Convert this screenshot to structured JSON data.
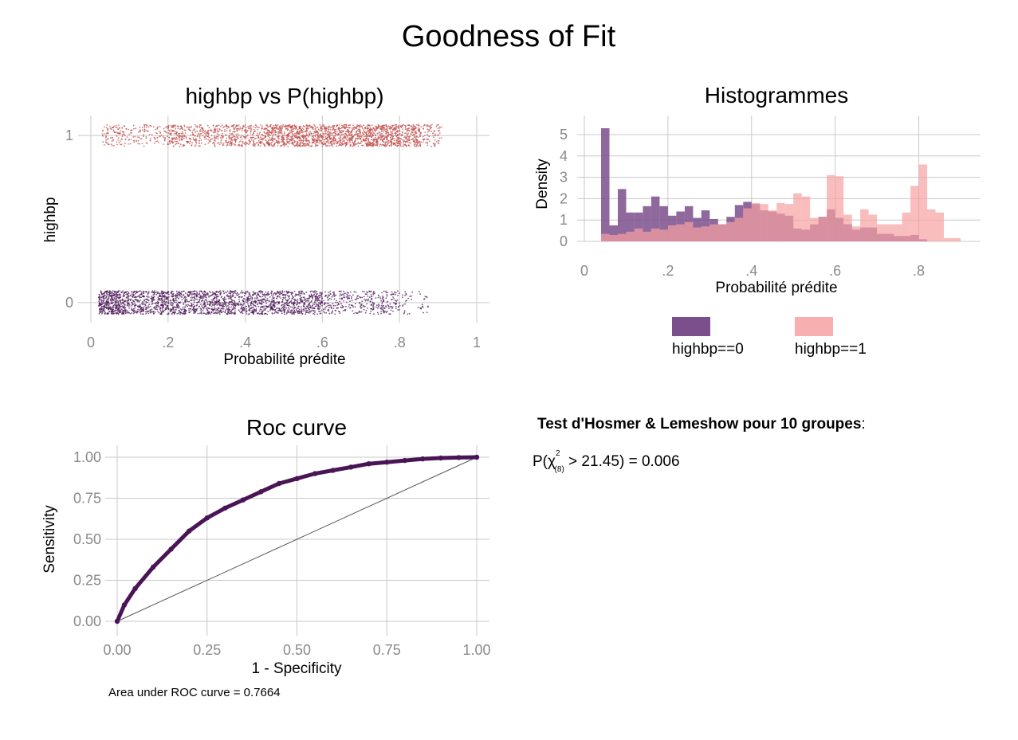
{
  "figure": {
    "title": "Goodness of Fit"
  },
  "colors": {
    "class0": "#4a1556",
    "class1": "#c0504d",
    "hist0": "#7b4f8c",
    "hist1": "#f7a1a1",
    "roc": "#4a1556"
  },
  "chart_data": [
    {
      "type": "scatter",
      "title": "highbp vs P(highbp)",
      "xlabel": "Probabilité prédite",
      "ylabel": "highbp",
      "xlim": [
        0,
        1
      ],
      "ylim": [
        -0.12,
        1.12
      ],
      "x_ticks": [
        0,
        0.2,
        0.4,
        0.6,
        0.8,
        1
      ],
      "x_tick_labels": [
        "0",
        ".2",
        ".4",
        ".6",
        ".8",
        "1"
      ],
      "y_ticks": [
        0,
        1
      ],
      "y_tick_labels": [
        "0",
        "1"
      ],
      "grid": true,
      "groups": [
        {
          "y": 0,
          "x_range": [
            0.02,
            0.88
          ],
          "color": "#4a1556",
          "description_density": "dense near 0.03-0.6, sparse above 0.8"
        },
        {
          "y": 1,
          "x_range": [
            0.03,
            0.91
          ],
          "color": "#c0504d",
          "description_density": "dense near 0.45-0.85"
        }
      ]
    },
    {
      "type": "bar",
      "title": "Histogrammes",
      "xlabel": "Probabilité prédite",
      "ylabel": "Density",
      "xlim": [
        0,
        0.92
      ],
      "ylim": [
        0,
        5.5
      ],
      "x_ticks": [
        0,
        0.2,
        0.4,
        0.6,
        0.8
      ],
      "x_tick_labels": [
        "0",
        ".2",
        ".4",
        ".6",
        ".8"
      ],
      "y_ticks": [
        0,
        1,
        2,
        3,
        4,
        5
      ],
      "y_tick_labels": [
        "0",
        "1",
        "2",
        "3",
        "4",
        "5"
      ],
      "grid": true,
      "bin_width": 0.02,
      "bin_start": 0.04,
      "legend": {
        "position": "bottom",
        "items": [
          "highbp==0",
          "highbp==1"
        ]
      },
      "series": [
        {
          "name": "highbp==0",
          "values": [
            5.3,
            0.75,
            2.45,
            1.35,
            1.35,
            1.65,
            2.1,
            1.65,
            1.2,
            1.4,
            1.65,
            1.1,
            1.45,
            1.05,
            0.8,
            1.15,
            1.7,
            1.85,
            1.75,
            1.45,
            1.4,
            1.3,
            1.2,
            0.6,
            0.55,
            0.8,
            1.15,
            1.5,
            1.1,
            0.8,
            0.55,
            0.65,
            0.65,
            0.35,
            0.35,
            0.25,
            0.25,
            0.3,
            0.1,
            0.0,
            0.0
          ]
        },
        {
          "name": "highbp==1",
          "values": [
            0.35,
            0.3,
            0.35,
            0.45,
            0.6,
            0.45,
            0.6,
            0.55,
            0.75,
            0.8,
            0.9,
            0.65,
            0.7,
            0.8,
            0.8,
            0.9,
            1.1,
            1.55,
            1.8,
            1.75,
            1.45,
            1.8,
            1.75,
            2.25,
            2.1,
            1.1,
            1.15,
            3.1,
            3.05,
            1.25,
            0.7,
            1.5,
            1.25,
            0.8,
            0.8,
            0.8,
            1.35,
            2.6,
            3.6,
            1.5,
            1.35,
            0.15,
            0.15
          ]
        }
      ]
    },
    {
      "type": "line",
      "title": "Roc curve",
      "xlabel": "1 - Specificity",
      "ylabel": "Sensitivity",
      "xlim": [
        0,
        1
      ],
      "ylim": [
        0,
        1
      ],
      "x_ticks": [
        0,
        0.25,
        0.5,
        0.75,
        1
      ],
      "x_tick_labels": [
        "0.00",
        "0.25",
        "0.50",
        "0.75",
        "1.00"
      ],
      "y_ticks": [
        0,
        0.25,
        0.5,
        0.75,
        1
      ],
      "y_tick_labels": [
        "0.00",
        "0.25",
        "0.50",
        "0.75",
        "1.00"
      ],
      "grid": true,
      "annotation": "Area under ROC curve = 0.7664",
      "series": [
        {
          "x": [
            0,
            0.02,
            0.05,
            0.1,
            0.15,
            0.2,
            0.25,
            0.3,
            0.35,
            0.4,
            0.45,
            0.5,
            0.55,
            0.6,
            0.65,
            0.7,
            0.75,
            0.8,
            0.85,
            0.9,
            0.95,
            1.0
          ],
          "y": [
            0,
            0.1,
            0.2,
            0.33,
            0.44,
            0.55,
            0.63,
            0.69,
            0.74,
            0.79,
            0.84,
            0.87,
            0.9,
            0.92,
            0.94,
            0.96,
            0.97,
            0.98,
            0.99,
            0.995,
            0.998,
            1.0
          ]
        },
        {
          "x": [
            0,
            1
          ],
          "y": [
            0,
            1
          ]
        }
      ]
    }
  ],
  "hosmer_lemeshow": {
    "title": "Test d'Hosmer & Lemeshow pour 10 groupes",
    "colon": ":",
    "p_prefix": "P(χ",
    "superscript": "2",
    "subscript": "(8)",
    "statistic_text": " >  21.45) =  0.006"
  }
}
